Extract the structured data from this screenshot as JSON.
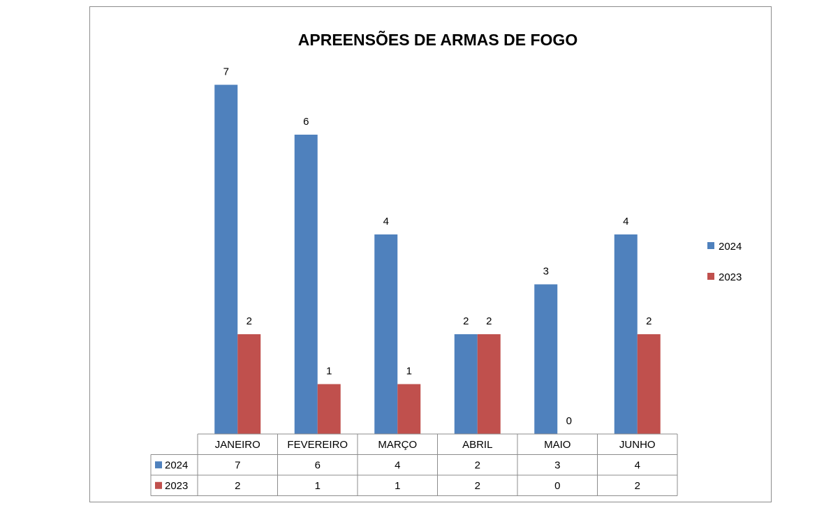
{
  "chart_data": {
    "type": "bar",
    "title": "APREENSÕES DE ARMAS DE FOGO",
    "categories": [
      "JANEIRO",
      "FEVEREIRO",
      "MARÇO",
      "ABRIL",
      "MAIO",
      "JUNHO"
    ],
    "series": [
      {
        "name": "2024",
        "values": [
          7,
          6,
          4,
          2,
          3,
          4
        ],
        "color": "#4f81bd"
      },
      {
        "name": "2023",
        "values": [
          2,
          1,
          1,
          2,
          0,
          2
        ],
        "color": "#c0504d"
      }
    ],
    "ylim": [
      0,
      7
    ],
    "grid": false,
    "legend_position": "right",
    "data_table": true
  }
}
